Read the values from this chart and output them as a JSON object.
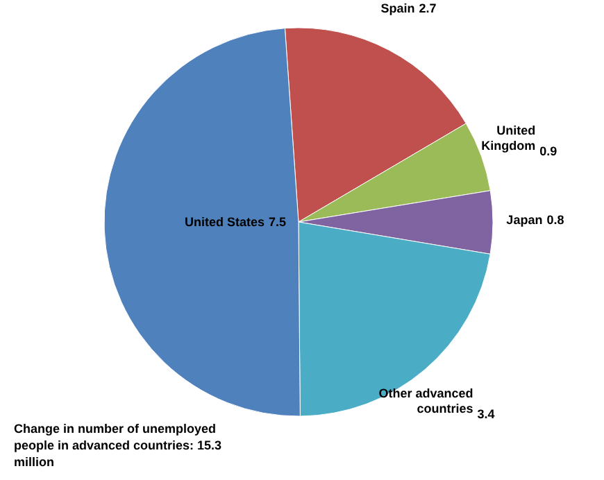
{
  "chart_data": {
    "type": "pie",
    "categories": [
      "Spain",
      "United Kingdom",
      "Japan",
      "Other advanced countries",
      "United States"
    ],
    "values": [
      2.7,
      0.9,
      0.8,
      3.4,
      7.5
    ],
    "colors": [
      "#c0504d",
      "#9bbb59",
      "#8064a2",
      "#4bacc6",
      "#4f81bd"
    ],
    "data_labels": true,
    "annotations": [
      "Change in number of unemployed people in advanced countries: 15.3 million"
    ]
  }
}
